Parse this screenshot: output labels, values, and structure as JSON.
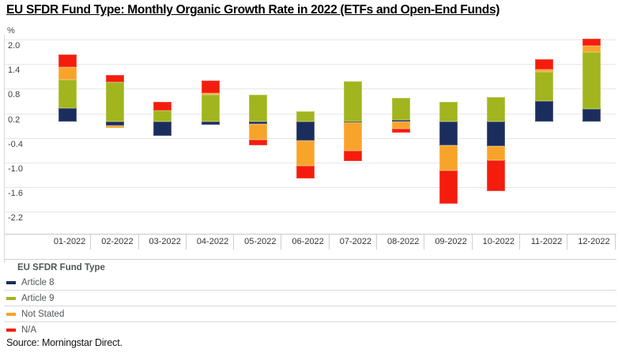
{
  "title": "EU SFDR Fund Type: Monthly Organic Growth Rate in 2022 (ETFs and Open-End Funds)",
  "y_axis": {
    "unit": "%",
    "tick_labels": [
      "2.0",
      "1.4",
      "0.8",
      "0.2",
      "-0.4",
      "-1.0",
      "-1.6",
      "-2.2"
    ]
  },
  "chart_data": {
    "type": "bar",
    "stacked": true,
    "title": "EU SFDR Fund Type: Monthly Organic Growth Rate in 2022 (ETFs and Open-End Funds)",
    "ylabel": "%",
    "ylim": [
      -2.2,
      2.0
    ],
    "grid": true,
    "legend_position": "bottom",
    "categories": [
      "01-2022",
      "02-2022",
      "03-2022",
      "04-2022",
      "05-2022",
      "06-2022",
      "07-2022",
      "08-2022",
      "09-2022",
      "10-2022",
      "11-2022",
      "12-2022"
    ],
    "series": [
      {
        "name": "Article 8",
        "color": "#1b2d5c",
        "values": [
          0.33,
          -0.1,
          -0.34,
          -0.08,
          -0.05,
          -0.47,
          -0.02,
          0.03,
          -0.58,
          -0.59,
          0.5,
          0.3
        ]
      },
      {
        "name": "Article 9",
        "color": "#a2b51e",
        "values": [
          0.69,
          0.96,
          0.26,
          0.65,
          0.65,
          0.25,
          0.98,
          0.54,
          0.49,
          0.59,
          0.71,
          1.39
        ]
      },
      {
        "name": "Not Stated",
        "color": "#f8a42b",
        "values": [
          0.3,
          -0.05,
          0.0,
          0.05,
          -0.4,
          -0.6,
          -0.69,
          -0.18,
          -0.62,
          -0.36,
          0.05,
          0.15
        ]
      },
      {
        "name": "N/A",
        "color": "#f41d0d",
        "values": [
          0.31,
          0.18,
          0.22,
          0.3,
          -0.13,
          -0.32,
          -0.26,
          -0.09,
          -0.8,
          -0.75,
          0.26,
          0.18
        ]
      }
    ]
  },
  "legend": {
    "title": "EU SFDR Fund Type",
    "items": [
      {
        "label": "Article 8",
        "color": "#1b2d5c"
      },
      {
        "label": "Article 9",
        "color": "#a2b51e"
      },
      {
        "label": "Not Stated",
        "color": "#f8a42b"
      },
      {
        "label": "N/A",
        "color": "#f41d0d"
      }
    ]
  },
  "source": "Source: Morningstar Direct."
}
